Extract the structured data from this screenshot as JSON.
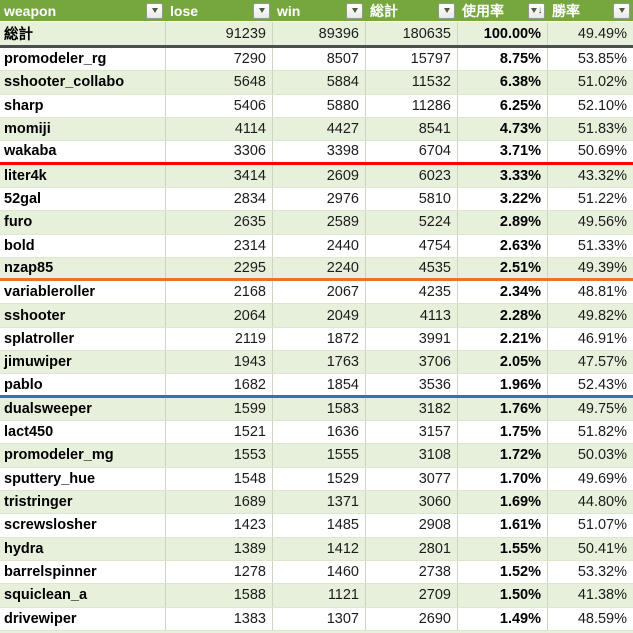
{
  "table": {
    "columns": [
      {
        "key": "weapon",
        "label": "weapon",
        "filter": "dropdown"
      },
      {
        "key": "lose",
        "label": "lose",
        "filter": "dropdown"
      },
      {
        "key": "win",
        "label": "win",
        "filter": "dropdown"
      },
      {
        "key": "total",
        "label": "総計",
        "filter": "dropdown"
      },
      {
        "key": "usage",
        "label": "使用率",
        "filter": "sorted-descending"
      },
      {
        "key": "winrate",
        "label": "勝率",
        "filter": "dropdown"
      }
    ],
    "total_row": {
      "weapon": "総計",
      "lose": "91239",
      "win": "89396",
      "total": "180635",
      "usage": "100.00%",
      "winrate": "49.49%"
    },
    "rows": [
      {
        "weapon": "promodeler_rg",
        "lose": "7290",
        "win": "8507",
        "total": "15797",
        "usage": "8.75%",
        "winrate": "53.85%"
      },
      {
        "weapon": "sshooter_collabo",
        "lose": "5648",
        "win": "5884",
        "total": "11532",
        "usage": "6.38%",
        "winrate": "51.02%"
      },
      {
        "weapon": "sharp",
        "lose": "5406",
        "win": "5880",
        "total": "11286",
        "usage": "6.25%",
        "winrate": "52.10%"
      },
      {
        "weapon": "momiji",
        "lose": "4114",
        "win": "4427",
        "total": "8541",
        "usage": "4.73%",
        "winrate": "51.83%"
      },
      {
        "weapon": "wakaba",
        "lose": "3306",
        "win": "3398",
        "total": "6704",
        "usage": "3.71%",
        "winrate": "50.69%",
        "divider": "red"
      },
      {
        "weapon": "liter4k",
        "lose": "3414",
        "win": "2609",
        "total": "6023",
        "usage": "3.33%",
        "winrate": "43.32%"
      },
      {
        "weapon": "52gal",
        "lose": "2834",
        "win": "2976",
        "total": "5810",
        "usage": "3.22%",
        "winrate": "51.22%"
      },
      {
        "weapon": "furo",
        "lose": "2635",
        "win": "2589",
        "total": "5224",
        "usage": "2.89%",
        "winrate": "49.56%"
      },
      {
        "weapon": "bold",
        "lose": "2314",
        "win": "2440",
        "total": "4754",
        "usage": "2.63%",
        "winrate": "51.33%"
      },
      {
        "weapon": "nzap85",
        "lose": "2295",
        "win": "2240",
        "total": "4535",
        "usage": "2.51%",
        "winrate": "49.39%",
        "divider": "orange"
      },
      {
        "weapon": "variableroller",
        "lose": "2168",
        "win": "2067",
        "total": "4235",
        "usage": "2.34%",
        "winrate": "48.81%"
      },
      {
        "weapon": "sshooter",
        "lose": "2064",
        "win": "2049",
        "total": "4113",
        "usage": "2.28%",
        "winrate": "49.82%"
      },
      {
        "weapon": "splatroller",
        "lose": "2119",
        "win": "1872",
        "total": "3991",
        "usage": "2.21%",
        "winrate": "46.91%"
      },
      {
        "weapon": "jimuwiper",
        "lose": "1943",
        "win": "1763",
        "total": "3706",
        "usage": "2.05%",
        "winrate": "47.57%"
      },
      {
        "weapon": "pablo",
        "lose": "1682",
        "win": "1854",
        "total": "3536",
        "usage": "1.96%",
        "winrate": "52.43%",
        "divider": "blue"
      },
      {
        "weapon": "dualsweeper",
        "lose": "1599",
        "win": "1583",
        "total": "3182",
        "usage": "1.76%",
        "winrate": "49.75%"
      },
      {
        "weapon": "lact450",
        "lose": "1521",
        "win": "1636",
        "total": "3157",
        "usage": "1.75%",
        "winrate": "51.82%"
      },
      {
        "weapon": "promodeler_mg",
        "lose": "1553",
        "win": "1555",
        "total": "3108",
        "usage": "1.72%",
        "winrate": "50.03%"
      },
      {
        "weapon": "sputtery_hue",
        "lose": "1548",
        "win": "1529",
        "total": "3077",
        "usage": "1.70%",
        "winrate": "49.69%"
      },
      {
        "weapon": "tristringer",
        "lose": "1689",
        "win": "1371",
        "total": "3060",
        "usage": "1.69%",
        "winrate": "44.80%"
      },
      {
        "weapon": "screwslosher",
        "lose": "1423",
        "win": "1485",
        "total": "2908",
        "usage": "1.61%",
        "winrate": "51.07%"
      },
      {
        "weapon": "hydra",
        "lose": "1389",
        "win": "1412",
        "total": "2801",
        "usage": "1.55%",
        "winrate": "50.41%"
      },
      {
        "weapon": "barrelspinner",
        "lose": "1278",
        "win": "1460",
        "total": "2738",
        "usage": "1.52%",
        "winrate": "53.32%"
      },
      {
        "weapon": "squiclean_a",
        "lose": "1588",
        "win": "1121",
        "total": "2709",
        "usage": "1.50%",
        "winrate": "41.38%"
      },
      {
        "weapon": "drivewiper",
        "lose": "1383",
        "win": "1307",
        "total": "2690",
        "usage": "1.49%",
        "winrate": "48.59%"
      }
    ]
  },
  "icons": {
    "sort_descending_arrow": "↓"
  },
  "colors": {
    "header_bg": "#76A73F",
    "band_green": "#E7F0DB",
    "band_white": "#FFFFFF",
    "divider_red": "#FF0000",
    "divider_orange": "#E9732A",
    "divider_blue": "#2E75B6",
    "total_border": "#4D4D4D"
  }
}
